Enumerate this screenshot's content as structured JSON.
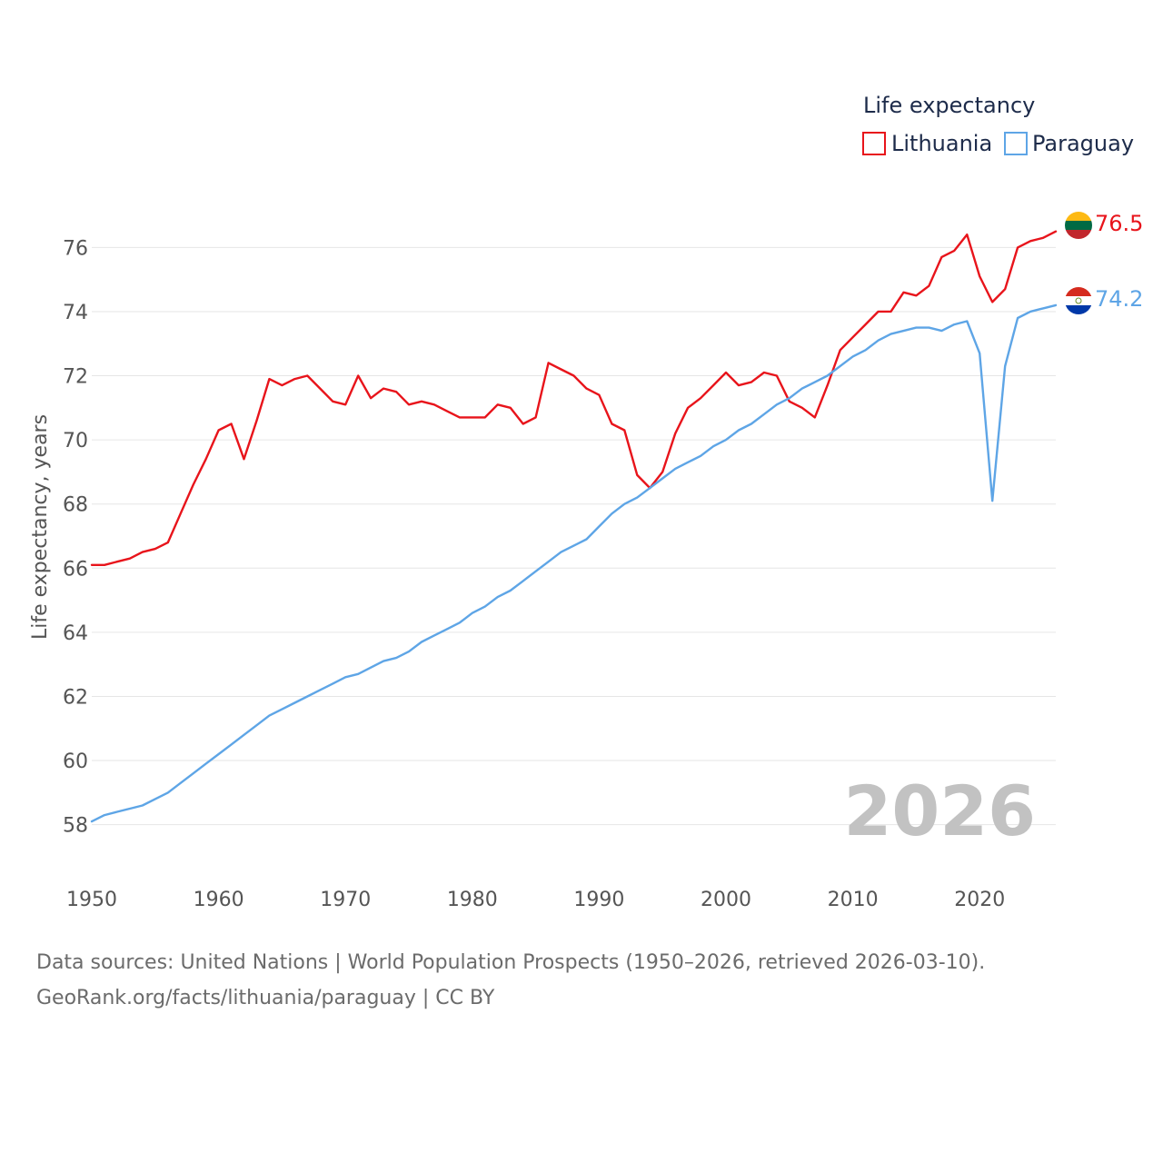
{
  "chart_data": {
    "type": "line",
    "legend_title": "Life expectancy",
    "ylabel": "Life expectancy, years",
    "xlabel": "",
    "xlim": [
      1950,
      2026
    ],
    "ylim": [
      56.8,
      77.2
    ],
    "x_ticks": [
      1950,
      1960,
      1970,
      1980,
      1990,
      2000,
      2010,
      2020
    ],
    "y_ticks": [
      58,
      60,
      62,
      64,
      66,
      68,
      70,
      72,
      74,
      76
    ],
    "year_watermark": "2026",
    "legend_position": "top-right",
    "series": [
      {
        "name": "Lithuania",
        "color": "#e8141b",
        "end_label": "76.5",
        "flag": "lithuania-flag",
        "x": [
          1950,
          1951,
          1952,
          1953,
          1954,
          1955,
          1956,
          1957,
          1958,
          1959,
          1960,
          1961,
          1962,
          1963,
          1964,
          1965,
          1966,
          1967,
          1968,
          1969,
          1970,
          1971,
          1972,
          1973,
          1974,
          1975,
          1976,
          1977,
          1978,
          1979,
          1980,
          1981,
          1982,
          1983,
          1984,
          1985,
          1986,
          1987,
          1988,
          1989,
          1990,
          1991,
          1992,
          1993,
          1994,
          1995,
          1996,
          1997,
          1998,
          1999,
          2000,
          2001,
          2002,
          2003,
          2004,
          2005,
          2006,
          2007,
          2008,
          2009,
          2010,
          2011,
          2012,
          2013,
          2014,
          2015,
          2016,
          2017,
          2018,
          2019,
          2020,
          2021,
          2022,
          2023,
          2024,
          2025,
          2026
        ],
        "values": [
          66.1,
          66.1,
          66.2,
          66.3,
          66.5,
          66.6,
          66.8,
          67.7,
          68.6,
          69.4,
          70.3,
          70.5,
          69.4,
          70.6,
          71.9,
          71.7,
          71.9,
          72.0,
          71.6,
          71.2,
          71.1,
          72.0,
          71.3,
          71.6,
          71.5,
          71.1,
          71.2,
          71.1,
          70.9,
          70.7,
          70.7,
          70.7,
          71.1,
          71.0,
          70.5,
          70.7,
          72.4,
          72.2,
          72.0,
          71.6,
          71.4,
          70.5,
          70.3,
          68.9,
          68.5,
          69.0,
          70.2,
          71.0,
          71.3,
          71.7,
          72.1,
          71.7,
          71.8,
          72.1,
          72.0,
          71.2,
          71.0,
          70.7,
          71.7,
          72.8,
          73.2,
          73.6,
          74.0,
          74.0,
          74.6,
          74.5,
          74.8,
          75.7,
          75.9,
          76.4,
          75.1,
          74.3,
          74.7,
          76.0,
          76.2,
          76.3,
          76.5
        ]
      },
      {
        "name": "Paraguay",
        "color": "#5ea5e6",
        "end_label": "74.2",
        "flag": "paraguay-flag",
        "x": [
          1950,
          1951,
          1952,
          1953,
          1954,
          1955,
          1956,
          1957,
          1958,
          1959,
          1960,
          1961,
          1962,
          1963,
          1964,
          1965,
          1966,
          1967,
          1968,
          1969,
          1970,
          1971,
          1972,
          1973,
          1974,
          1975,
          1976,
          1977,
          1978,
          1979,
          1980,
          1981,
          1982,
          1983,
          1984,
          1985,
          1986,
          1987,
          1988,
          1989,
          1990,
          1991,
          1992,
          1993,
          1994,
          1995,
          1996,
          1997,
          1998,
          1999,
          2000,
          2001,
          2002,
          2003,
          2004,
          2005,
          2006,
          2007,
          2008,
          2009,
          2010,
          2011,
          2012,
          2013,
          2014,
          2015,
          2016,
          2017,
          2018,
          2019,
          2020,
          2021,
          2022,
          2023,
          2024,
          2025,
          2026
        ],
        "values": [
          58.1,
          58.3,
          58.4,
          58.5,
          58.6,
          58.8,
          59.0,
          59.3,
          59.6,
          59.9,
          60.2,
          60.5,
          60.8,
          61.1,
          61.4,
          61.6,
          61.8,
          62.0,
          62.2,
          62.4,
          62.6,
          62.7,
          62.9,
          63.1,
          63.2,
          63.4,
          63.7,
          63.9,
          64.1,
          64.3,
          64.6,
          64.8,
          65.1,
          65.3,
          65.6,
          65.9,
          66.2,
          66.5,
          66.7,
          66.9,
          67.3,
          67.7,
          68.0,
          68.2,
          68.5,
          68.8,
          69.1,
          69.3,
          69.5,
          69.8,
          70.0,
          70.3,
          70.5,
          70.8,
          71.1,
          71.3,
          71.6,
          71.8,
          72.0,
          72.3,
          72.6,
          72.8,
          73.1,
          73.3,
          73.4,
          73.5,
          73.5,
          73.4,
          73.6,
          73.7,
          72.7,
          68.1,
          72.3,
          73.8,
          74.0,
          74.1,
          74.2
        ]
      }
    ]
  },
  "footer": {
    "source_line1": "Data sources: United Nations | World Population Prospects (1950–2026, retrieved 2026-03-10).",
    "source_line2": "GeoRank.org/facts/lithuania/paraguay | CC BY"
  }
}
